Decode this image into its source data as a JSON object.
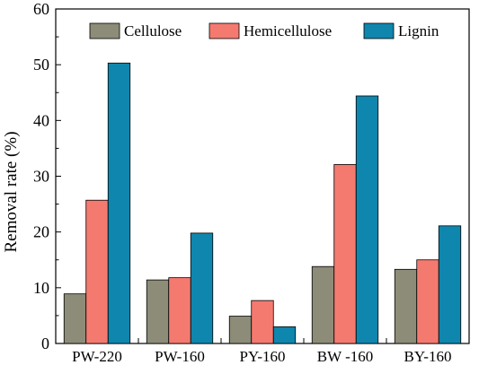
{
  "chart_data": {
    "type": "bar",
    "title": "",
    "xlabel": "",
    "ylabel": "Removal rate (%)",
    "ylim": [
      0,
      60
    ],
    "yticks": [
      "0",
      "10",
      "20",
      "30",
      "40",
      "50",
      "60"
    ],
    "grid": false,
    "legend_position": "top",
    "categories": [
      "PW-220",
      "PW-160",
      "PY-160",
      "BW -160",
      "BY-160"
    ],
    "series": [
      {
        "name": "Cellulose",
        "color": "#8c8c78",
        "values": [
          8.9,
          11.4,
          4.9,
          13.8,
          13.3
        ]
      },
      {
        "name": "Hemicellulose",
        "color": "#f47a70",
        "values": [
          25.7,
          11.8,
          7.7,
          32.1,
          15.0
        ]
      },
      {
        "name": "Lignin",
        "color": "#0f86ad",
        "values": [
          50.3,
          19.8,
          3.0,
          44.4,
          21.1
        ]
      }
    ]
  }
}
